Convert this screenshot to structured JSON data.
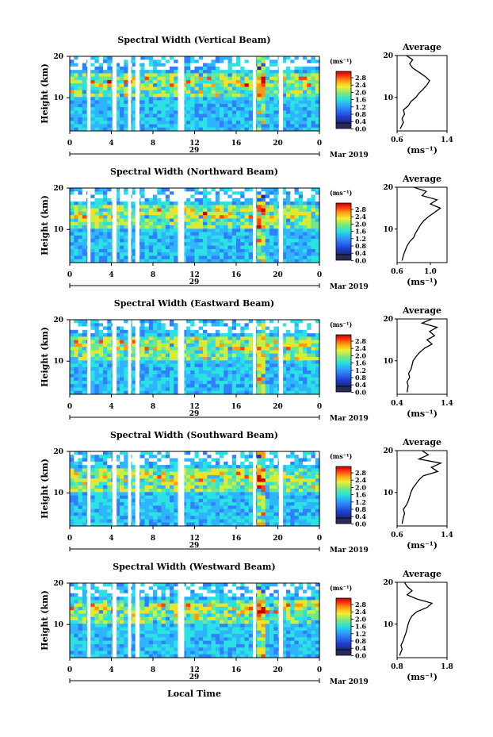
{
  "figure": {
    "day_label": "29",
    "month_label": "Mar 2019",
    "xlabel_bottom": "Local Time",
    "average_title": "Average",
    "unit_label": "(ms⁻¹)"
  },
  "chart_data": [
    {
      "type": "heatmap",
      "title": "Spectral Width (Vertical Beam)",
      "ylabel": "Height (km)",
      "x_ticks": [
        "0",
        "4",
        "8",
        "12",
        "16",
        "20",
        "0"
      ],
      "x_range_hours": [
        0,
        24
      ],
      "y_ticks": [
        "20",
        "10"
      ],
      "y_range_km": [
        2,
        20
      ],
      "gaps_hours": [
        [
          1.7,
          2.0
        ],
        [
          4.1,
          4.5
        ],
        [
          5.6,
          5.9
        ],
        [
          6.3,
          6.7
        ],
        [
          10.4,
          11.0
        ],
        [
          17.6,
          17.9
        ],
        [
          20.1,
          20.5
        ]
      ],
      "colorbar": {
        "unit": "(ms⁻¹)",
        "ticks": [
          "2.8",
          "2.4",
          "2.0",
          "1.6",
          "1.2",
          "0.8",
          "0.4",
          "0.0"
        ]
      },
      "average_profile": {
        "title": "Average",
        "xlabel": "(ms⁻¹)",
        "x_ticks": [
          "0.6",
          "1.4"
        ],
        "xlim": [
          0.6,
          1.4
        ],
        "y_ticks": [
          "20",
          "10"
        ],
        "height_km": [
          2.5,
          4,
          5,
          6,
          7,
          8,
          9,
          10,
          11,
          12,
          13,
          14,
          15,
          16,
          17,
          18,
          19,
          20
        ],
        "width_ms": [
          0.65,
          0.7,
          0.68,
          0.72,
          0.7,
          0.78,
          0.82,
          0.9,
          0.95,
          1.02,
          1.08,
          1.12,
          1.05,
          0.95,
          0.85,
          0.8,
          0.85,
          0.75
        ]
      }
    },
    {
      "type": "heatmap",
      "title": "Spectral Width (Northward Beam)",
      "ylabel": "Height (km)",
      "x_ticks": [
        "0",
        "4",
        "8",
        "12",
        "16",
        "20",
        "0"
      ],
      "x_range_hours": [
        0,
        24
      ],
      "y_ticks": [
        "20",
        "10"
      ],
      "y_range_km": [
        2,
        20
      ],
      "gaps_hours": [
        [
          1.7,
          2.0
        ],
        [
          4.1,
          4.5
        ],
        [
          5.6,
          5.9
        ],
        [
          6.3,
          6.7
        ],
        [
          10.4,
          11.0
        ],
        [
          17.6,
          17.9
        ],
        [
          20.1,
          20.5
        ]
      ],
      "colorbar": {
        "unit": "(ms⁻¹)",
        "ticks": [
          "2.8",
          "2.4",
          "2.0",
          "1.6",
          "1.2",
          "0.8",
          "0.4",
          "0.0"
        ]
      },
      "average_profile": {
        "title": "Average",
        "xlabel": "(ms⁻¹)",
        "x_ticks": [
          "0.6",
          "1.0"
        ],
        "xlim": [
          0.6,
          1.2
        ],
        "y_ticks": [
          "20",
          "10"
        ],
        "height_km": [
          2.5,
          4,
          5,
          6,
          7,
          8,
          9,
          10,
          11,
          12,
          13,
          14,
          15,
          16,
          17,
          18,
          19,
          20
        ],
        "width_ms": [
          0.66,
          0.68,
          0.7,
          0.72,
          0.75,
          0.8,
          0.82,
          0.85,
          0.88,
          0.92,
          0.98,
          1.05,
          1.12,
          1.0,
          1.08,
          0.9,
          0.95,
          0.8
        ]
      }
    },
    {
      "type": "heatmap",
      "title": "Spectral Width (Eastward Beam)",
      "ylabel": "Height (km)",
      "x_ticks": [
        "0",
        "4",
        "8",
        "12",
        "16",
        "20",
        "0"
      ],
      "x_range_hours": [
        0,
        24
      ],
      "y_ticks": [
        "20",
        "10"
      ],
      "y_range_km": [
        2,
        20
      ],
      "gaps_hours": [
        [
          1.7,
          2.0
        ],
        [
          4.1,
          4.5
        ],
        [
          5.6,
          5.9
        ],
        [
          6.3,
          6.7
        ],
        [
          10.4,
          11.0
        ],
        [
          17.6,
          17.9
        ],
        [
          20.1,
          20.5
        ]
      ],
      "colorbar": {
        "unit": "(ms⁻¹)",
        "ticks": [
          "2.8",
          "2.4",
          "2.0",
          "1.6",
          "1.2",
          "0.8",
          "0.4",
          "0.0"
        ]
      },
      "average_profile": {
        "title": "Average",
        "xlabel": "(ms⁻¹)",
        "x_ticks": [
          "0.4",
          "1.4"
        ],
        "xlim": [
          0.4,
          1.4
        ],
        "y_ticks": [
          "20",
          "10"
        ],
        "height_km": [
          2.5,
          4,
          5,
          6,
          7,
          8,
          9,
          10,
          11,
          12,
          13,
          14,
          15,
          16,
          17,
          18,
          19,
          20
        ],
        "width_ms": [
          0.6,
          0.62,
          0.6,
          0.65,
          0.63,
          0.68,
          0.7,
          0.72,
          0.78,
          0.85,
          0.95,
          1.1,
          1.0,
          1.15,
          1.05,
          1.2,
          0.9,
          1.1
        ]
      }
    },
    {
      "type": "heatmap",
      "title": "Spectral Width (Southward Beam)",
      "ylabel": "Height (km)",
      "x_ticks": [
        "0",
        "4",
        "8",
        "12",
        "16",
        "20",
        "0"
      ],
      "x_range_hours": [
        0,
        24
      ],
      "y_ticks": [
        "20",
        "10"
      ],
      "y_range_km": [
        2,
        20
      ],
      "gaps_hours": [
        [
          1.7,
          2.0
        ],
        [
          4.1,
          4.5
        ],
        [
          5.6,
          5.9
        ],
        [
          6.3,
          6.7
        ],
        [
          10.4,
          11.0
        ],
        [
          17.6,
          17.9
        ],
        [
          20.1,
          20.5
        ]
      ],
      "colorbar": {
        "unit": "(ms⁻¹)",
        "ticks": [
          "2.8",
          "2.4",
          "2.0",
          "1.6",
          "1.2",
          "0.8",
          "0.4",
          "0.0"
        ]
      },
      "average_profile": {
        "title": "Average",
        "xlabel": "(ms⁻¹)",
        "x_ticks": [
          "0.6",
          "1.4"
        ],
        "xlim": [
          0.6,
          1.4
        ],
        "y_ticks": [
          "20",
          "10"
        ],
        "height_km": [
          2.5,
          4,
          5,
          6,
          7,
          8,
          9,
          10,
          11,
          12,
          13,
          14,
          15,
          16,
          17,
          18,
          19,
          20
        ],
        "width_ms": [
          0.68,
          0.7,
          0.72,
          0.7,
          0.75,
          0.78,
          0.8,
          0.82,
          0.85,
          0.9,
          0.95,
          1.02,
          1.25,
          1.15,
          1.3,
          0.95,
          1.1,
          1.0
        ]
      }
    },
    {
      "type": "heatmap",
      "title": "Spectral Width (Westward Beam)",
      "ylabel": "Height (km)",
      "x_ticks": [
        "0",
        "4",
        "8",
        "12",
        "16",
        "20",
        "0"
      ],
      "x_range_hours": [
        0,
        24
      ],
      "y_ticks": [
        "20",
        "10"
      ],
      "y_range_km": [
        2,
        20
      ],
      "gaps_hours": [
        [
          1.7,
          2.0
        ],
        [
          4.1,
          4.5
        ],
        [
          5.6,
          5.9
        ],
        [
          6.3,
          6.7
        ],
        [
          10.4,
          11.0
        ],
        [
          17.6,
          17.9
        ],
        [
          20.1,
          20.5
        ]
      ],
      "colorbar": {
        "unit": "(ms⁻¹)",
        "ticks": [
          "2.8",
          "2.4",
          "2.0",
          "1.6",
          "1.2",
          "0.8",
          "0.4",
          "0.0"
        ]
      },
      "average_profile": {
        "title": "Average",
        "xlabel": "(ms⁻¹)",
        "x_ticks": [
          "0.8",
          "1.8"
        ],
        "xlim": [
          0.8,
          1.8
        ],
        "y_ticks": [
          "20",
          "10"
        ],
        "height_km": [
          2.5,
          4,
          5,
          6,
          7,
          8,
          9,
          10,
          11,
          12,
          13,
          14,
          15,
          16,
          17,
          18,
          19,
          20
        ],
        "width_ms": [
          0.85,
          0.9,
          0.88,
          0.92,
          0.95,
          0.98,
          1.0,
          1.02,
          1.05,
          1.1,
          1.2,
          1.4,
          1.5,
          1.2,
          1.0,
          1.1,
          1.0,
          0.95
        ]
      }
    }
  ]
}
